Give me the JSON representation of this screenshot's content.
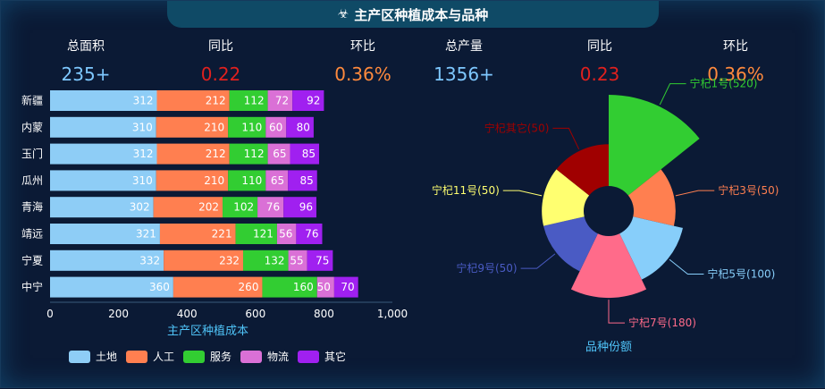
{
  "title": "主产区种植成本与品种",
  "title_icon": "biohazard-icon",
  "stats": [
    {
      "label": "总面积",
      "value": "235+",
      "color": "#7ec8ff"
    },
    {
      "label": "同比",
      "value": "0.22",
      "color": "#e0201e"
    },
    {
      "label": "环比",
      "value": "0.36%",
      "color": "#ff8a3d"
    },
    {
      "label": "总产量",
      "value": "1356+",
      "color": "#7ec8ff"
    },
    {
      "label": "同比",
      "value": "0.23",
      "color": "#e0201e"
    },
    {
      "label": "环比",
      "value": "0.36%",
      "color": "#ff8a3d"
    }
  ],
  "chart_data": [
    {
      "type": "bar",
      "orientation": "horizontal",
      "stacked": true,
      "xlabel": "主产区种植成本",
      "xlim": [
        0,
        1000
      ],
      "xticks": [
        "0",
        "200",
        "400",
        "600",
        "800",
        "1,000"
      ],
      "categories": [
        "新疆",
        "内蒙",
        "玉门",
        "瓜州",
        "青海",
        "靖远",
        "宁夏",
        "中宁"
      ],
      "series": [
        {
          "name": "土地",
          "color": "#8ecdf6",
          "values": [
            312,
            310,
            312,
            310,
            302,
            321,
            332,
            360
          ]
        },
        {
          "name": "人工",
          "color": "#ff7f50",
          "values": [
            212,
            210,
            212,
            210,
            202,
            221,
            232,
            260
          ]
        },
        {
          "name": "服务",
          "color": "#32cd32",
          "values": [
            112,
            110,
            112,
            110,
            102,
            121,
            132,
            160
          ]
        },
        {
          "name": "物流",
          "color": "#da70d6",
          "values": [
            72,
            60,
            65,
            65,
            76,
            56,
            55,
            50
          ]
        },
        {
          "name": "其它",
          "color": "#a020f0",
          "values": [
            92,
            80,
            85,
            85,
            96,
            76,
            75,
            70
          ]
        }
      ],
      "legend_position": "bottom"
    },
    {
      "type": "pie",
      "subtype": "rose",
      "title": "品种份额",
      "slices": [
        {
          "label": "宁杞1号",
          "value": 520,
          "text": "宁杞1号(520)",
          "color": "#32cd32"
        },
        {
          "label": "宁杞3号",
          "value": 50,
          "text": "宁杞3号(50)",
          "color": "#ff7f50"
        },
        {
          "label": "宁杞5号",
          "value": 100,
          "text": "宁杞5号(100)",
          "color": "#87cefa"
        },
        {
          "label": "宁杞7号",
          "value": 180,
          "text": "宁杞7号(180)",
          "color": "#ff6b8a"
        },
        {
          "label": "宁杞9号",
          "value": 50,
          "text": "宁杞9号(50)",
          "color": "#4a5bc4"
        },
        {
          "label": "宁杞11号",
          "value": 50,
          "text": "宁杞11号(50)",
          "color": "#ffff70"
        },
        {
          "label": "宁杞其它",
          "value": 50,
          "text": "宁杞其它(50)",
          "color": "#a00000"
        }
      ]
    }
  ]
}
